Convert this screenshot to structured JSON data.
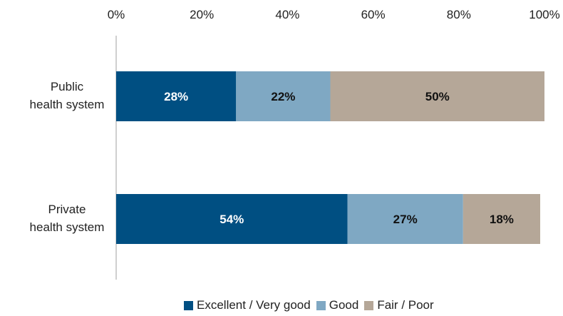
{
  "chart_data": {
    "type": "bar",
    "orientation": "horizontal",
    "stacked": true,
    "categories": [
      "Public health system",
      "Private health system"
    ],
    "category_lines": [
      [
        "Public",
        "health system"
      ],
      [
        "Private",
        "health system"
      ]
    ],
    "series": [
      {
        "name": "Excellent / Very good",
        "color": "#004f82",
        "label_color": "#ffffff",
        "values": [
          28,
          54
        ],
        "labels": [
          "28%",
          "54%"
        ]
      },
      {
        "name": "Good",
        "color": "#7fa8c3",
        "label_color": "#111111",
        "values": [
          22,
          27
        ],
        "labels": [
          "22%",
          "27%"
        ]
      },
      {
        "name": "Fair / Poor",
        "color": "#b5a798",
        "label_color": "#111111",
        "values": [
          50,
          18
        ],
        "labels": [
          "50%",
          "18%"
        ]
      }
    ],
    "x_ticks": [
      "0%",
      "20%",
      "40%",
      "60%",
      "80%",
      "100%"
    ],
    "xlim": [
      0,
      100
    ],
    "axis_position": "top",
    "grid": false,
    "legend_position": "bottom"
  }
}
